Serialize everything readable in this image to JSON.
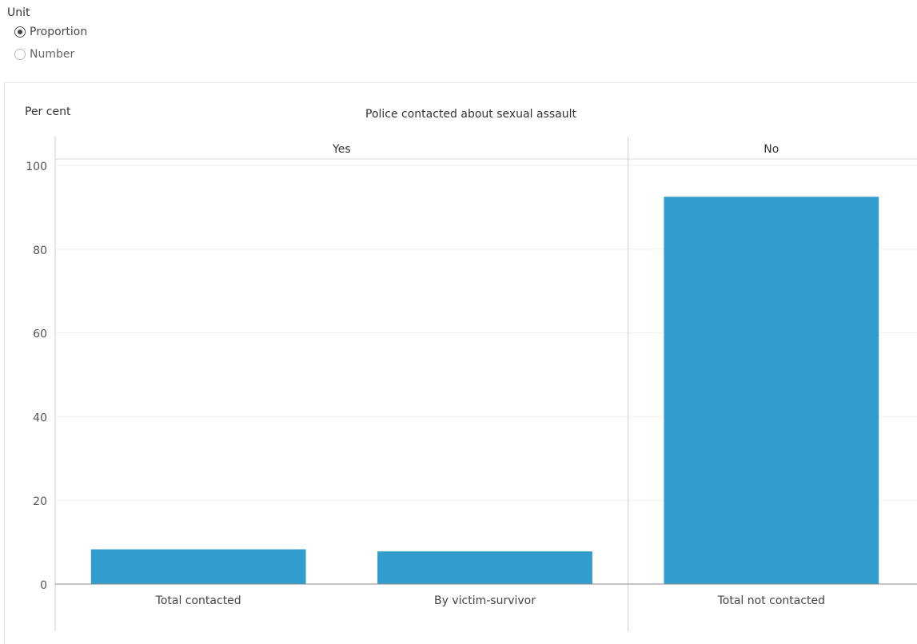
{
  "filter": {
    "title": "Unit",
    "options": [
      {
        "label": "Proportion",
        "selected": true
      },
      {
        "label": "Number",
        "selected": false
      }
    ]
  },
  "chart_data": {
    "type": "bar",
    "title": "Police contacted about sexual assault",
    "ylabel": "Per cent",
    "xlabel": "",
    "ylim": [
      0,
      100
    ],
    "yticks": [
      0,
      20,
      40,
      60,
      80,
      100
    ],
    "grid": true,
    "bar_color": "#319dcd",
    "groups": [
      {
        "name": "Yes",
        "categories": [
          "Total contacted",
          "By victim-survivor"
        ],
        "values": [
          8.3,
          7.8
        ]
      },
      {
        "name": "No",
        "categories": [
          "Total not contacted"
        ],
        "values": [
          92.5
        ]
      }
    ]
  }
}
